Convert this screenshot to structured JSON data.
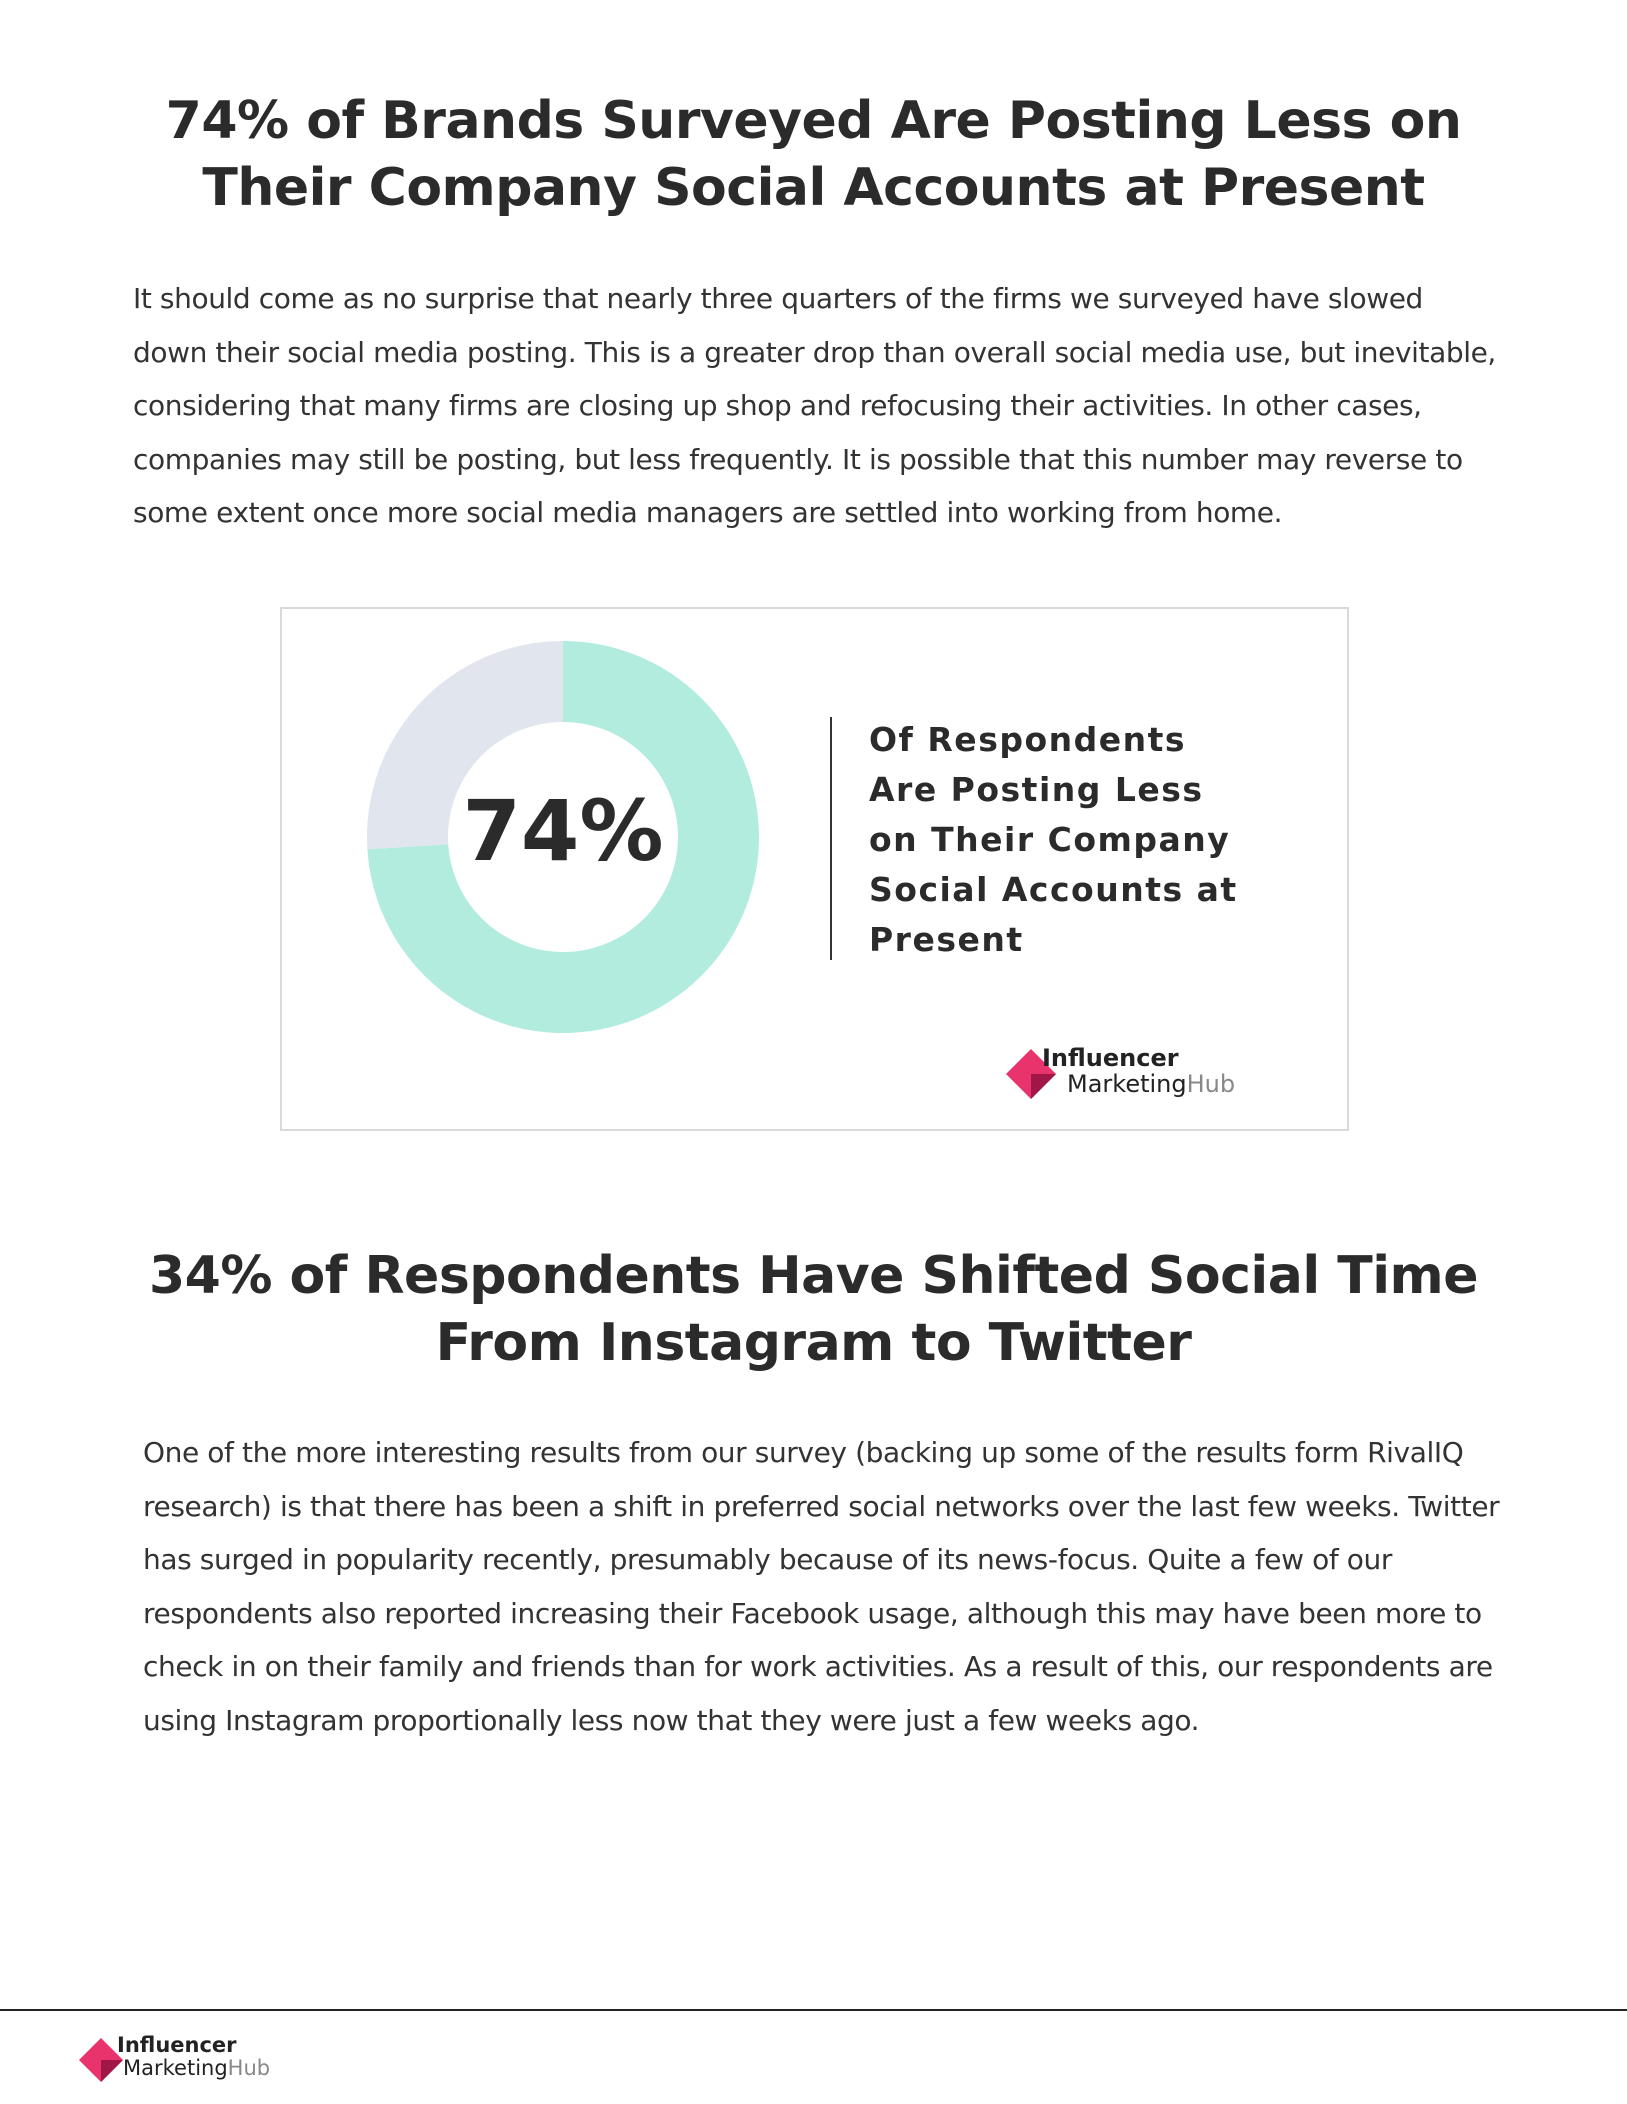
{
  "sections": [
    {
      "title_lines": [
        "74% of Brands Surveyed Are Posting Less on",
        "Their Company Social Accounts at Present"
      ],
      "paragraph": "It should come as no surprise that nearly three quarters of the firms we surveyed have slowed down their social media posting. This is a greater drop than overall social media use, but inevitable, considering that many firms are closing up shop and refocusing their activities. In other cases, companies may still be posting, but less frequently. It is possible that this number may reverse to some extent once more social media managers are settled into working from home."
    },
    {
      "title_lines": [
        "34% of Respondents Have Shifted Social Time",
        "From Instagram to Twitter"
      ],
      "paragraph": "One of the more interesting results from our survey (backing up some of the results form RivalIQ research) is that there has been a shift in preferred social networks over the last few weeks. Twitter has surged in popularity recently, presumably because of its news-focus. Quite a few of our respondents also reported increasing their Facebook usage, although this may have been more to check in on their family and friends than for work activities. As a result of this, our respondents are using Instagram proportionally less now that they were just a few weeks ago."
    }
  ],
  "chart_data": {
    "type": "donut",
    "values": [
      74,
      26
    ],
    "value_labels": [
      "74%",
      null
    ],
    "colors": [
      "#b1ecdf",
      "#e1e5ee"
    ],
    "caption_lines": [
      "Of Respondents",
      "Are Posting Less",
      "on Their Company",
      "Social Accounts at",
      "Present"
    ]
  },
  "logo": {
    "line1": "Influencer",
    "line2a": "Marketing",
    "line2b": "Hub"
  }
}
